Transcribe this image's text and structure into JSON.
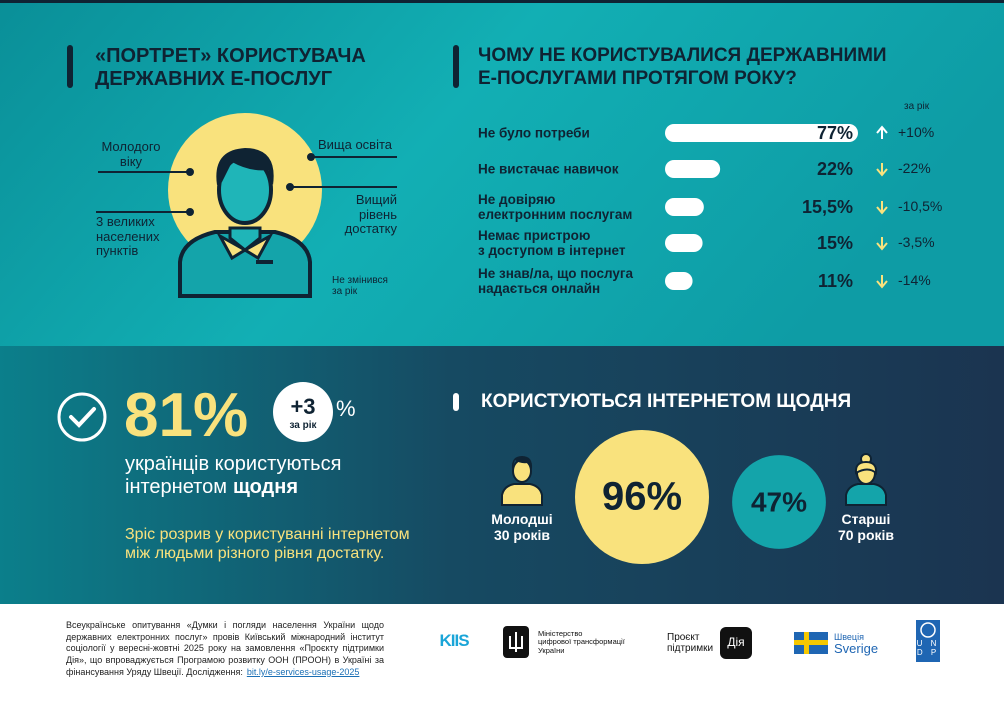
{
  "portrait": {
    "title": [
      "«ПОРТРЕТ» КОРИСТУВАЧА",
      "ДЕРЖАВНИХ Е-ПОСЛУГ"
    ],
    "traits": [
      "Молодого\nвіку",
      "Вища освіта",
      "3 великих\nнаселених\nпунктів",
      "Вищий\nрівень\nдостатку"
    ],
    "note": "Не змінився\nза рік"
  },
  "chart_data": [
    {
      "type": "bar",
      "title": [
        "ЧОМУ НЕ КОРИСТУВАЛИСЯ ДЕРЖАВНИМИ",
        "Е-ПОСЛУГАМИ ПРОТЯГОМ РОКУ?"
      ],
      "categories": [
        "Не було потреби",
        "Не вистачає навичок",
        "Не довіряю\nелектронним послугам",
        "Немає пристрою\nз доступом в інтернет",
        "Не знав/ла, що послуга\nнадається онлайн"
      ],
      "values": [
        77,
        22,
        15.5,
        15,
        11
      ],
      "value_labels": [
        "77%",
        "22%",
        "15,5%",
        "15%",
        "11%"
      ],
      "change_header": "за рік",
      "changes": [
        10,
        -22,
        -10.5,
        -3.5,
        -14
      ],
      "change_labels": [
        "+10%",
        "-22%",
        "-10,5%",
        "-3,5%",
        "-14%"
      ],
      "color": "#ffffff"
    },
    {
      "type": "bubble",
      "title": "КОРИСТУЮТЬСЯ ІНТЕРНЕТОМ ЩОДНЯ",
      "categories": [
        "Молодші\n30 років",
        "Старші\n70 років"
      ],
      "values": [
        96,
        47
      ],
      "value_labels": [
        "96%",
        "47%"
      ],
      "colors": [
        "#f9e27d",
        "#14a4aa"
      ]
    }
  ],
  "daily": {
    "value": "81%",
    "change": "+3",
    "change_unit": "%",
    "change_period": "за рік",
    "line1": "українців користуються",
    "line2": "інтернетом",
    "emphasis": "щодня",
    "note": [
      "Зріс розрив у користуванні інтернетом",
      "між людьми різного рівня достатку."
    ]
  },
  "footer": {
    "text": "Всеукраїнське опитування «Думки і погляди населення України щодо державних електронних послуг» провів Київський міжнародний інститут соціології у вересні-жовтні 2025 року на замовлення «Проєкту підтримки Дія», що впроваджується Програмою розвитку ООН (ПРООН) в Україні за фінансування Уряду Швеції. Дослідження:",
    "link": "bit.ly/e-services-usage-2025",
    "logos": {
      "kiis": "KIIS",
      "ministry": "Міністерство\nцифрової трансформації\nУкраїни",
      "project": "Проєкт\nпідтримки",
      "diia": "Дія",
      "sweden": "Швеція",
      "sverige": "Sverige",
      "undp": "U N\nD P"
    }
  }
}
